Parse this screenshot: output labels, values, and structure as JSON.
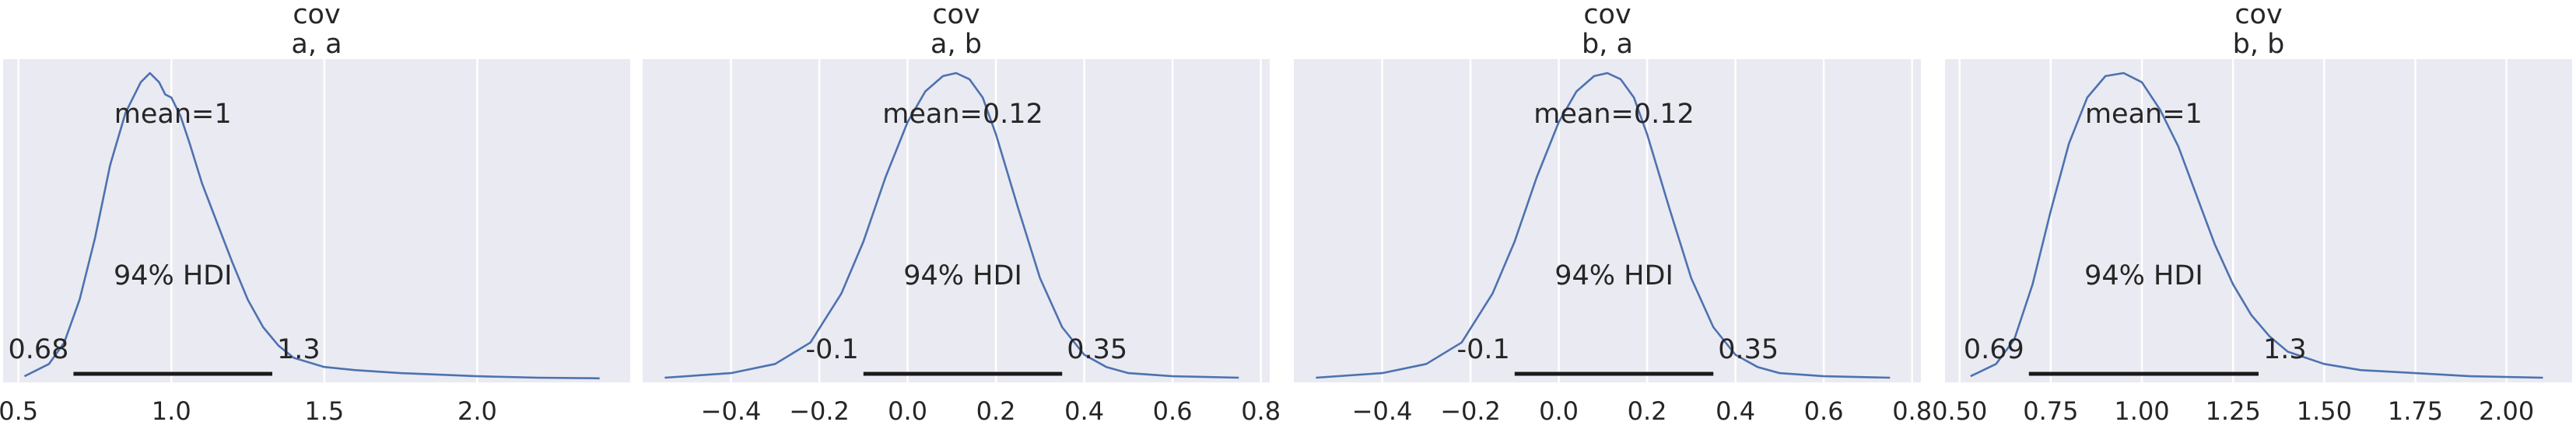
{
  "chart_data": [
    {
      "type": "line",
      "title": "cov\na, a",
      "title_lines": [
        "cov",
        "a, a"
      ],
      "xlim": [
        0.45,
        2.5
      ],
      "xticks": [
        0.5,
        1.0,
        1.5,
        2.0
      ],
      "xtick_labels": [
        "0.5",
        "1.0",
        "1.5",
        "2.0"
      ],
      "mean_label": "mean=1",
      "hdi_label": "94% HDI",
      "hdi": [
        0.68,
        1.33
      ],
      "hdi_labels": [
        "0.68",
        "1.3"
      ],
      "density": {
        "x": [
          0.52,
          0.6,
          0.65,
          0.7,
          0.75,
          0.8,
          0.85,
          0.9,
          0.93,
          0.96,
          0.98,
          1.0,
          1.03,
          1.06,
          1.1,
          1.15,
          1.2,
          1.25,
          1.3,
          1.35,
          1.4,
          1.5,
          1.6,
          1.75,
          2.0,
          2.2,
          2.4
        ],
        "y": [
          0.01,
          0.05,
          0.12,
          0.26,
          0.46,
          0.7,
          0.87,
          0.97,
          1.0,
          0.97,
          0.93,
          0.92,
          0.86,
          0.77,
          0.64,
          0.51,
          0.38,
          0.26,
          0.17,
          0.11,
          0.07,
          0.04,
          0.03,
          0.02,
          0.01,
          0.005,
          0.003
        ]
      }
    },
    {
      "type": "line",
      "title": "cov\na, b",
      "title_lines": [
        "cov",
        "a, b"
      ],
      "xlim": [
        -0.6,
        0.82
      ],
      "xticks": [
        -0.4,
        -0.2,
        0.0,
        0.2,
        0.4,
        0.6,
        0.8
      ],
      "xtick_labels": [
        "−0.4",
        "−0.2",
        "0.0",
        "0.2",
        "0.4",
        "0.6",
        "0.8"
      ],
      "mean_label": "mean=0.12",
      "hdi_label": "94% HDI",
      "hdi": [
        -0.1,
        0.35
      ],
      "hdi_labels": [
        "-0.1",
        "0.35"
      ],
      "density": {
        "x": [
          -0.55,
          -0.4,
          -0.3,
          -0.22,
          -0.15,
          -0.1,
          -0.05,
          0.0,
          0.04,
          0.08,
          0.11,
          0.14,
          0.17,
          0.2,
          0.25,
          0.3,
          0.35,
          0.4,
          0.45,
          0.5,
          0.6,
          0.75
        ],
        "y": [
          0.005,
          0.02,
          0.05,
          0.12,
          0.28,
          0.45,
          0.66,
          0.84,
          0.94,
          0.99,
          1.0,
          0.98,
          0.92,
          0.8,
          0.56,
          0.33,
          0.17,
          0.08,
          0.04,
          0.02,
          0.01,
          0.005
        ]
      }
    },
    {
      "type": "line",
      "title": "cov\nb, a",
      "title_lines": [
        "cov",
        "b, a"
      ],
      "xlim": [
        -0.6,
        0.82
      ],
      "xticks": [
        -0.4,
        -0.2,
        0.0,
        0.2,
        0.4,
        0.6,
        0.8
      ],
      "xtick_labels": [
        "−0.4",
        "−0.2",
        "0.0",
        "0.2",
        "0.4",
        "0.6",
        "0.8"
      ],
      "mean_label": "mean=0.12",
      "hdi_label": "94% HDI",
      "hdi": [
        -0.1,
        0.35
      ],
      "hdi_labels": [
        "-0.1",
        "0.35"
      ],
      "density": {
        "x": [
          -0.55,
          -0.4,
          -0.3,
          -0.22,
          -0.15,
          -0.1,
          -0.05,
          0.0,
          0.04,
          0.08,
          0.11,
          0.14,
          0.17,
          0.2,
          0.25,
          0.3,
          0.35,
          0.4,
          0.45,
          0.5,
          0.6,
          0.75
        ],
        "y": [
          0.005,
          0.02,
          0.05,
          0.12,
          0.28,
          0.45,
          0.66,
          0.84,
          0.94,
          0.99,
          1.0,
          0.98,
          0.92,
          0.8,
          0.56,
          0.33,
          0.17,
          0.08,
          0.04,
          0.02,
          0.01,
          0.005
        ]
      }
    },
    {
      "type": "line",
      "title": "cov\nb, b",
      "title_lines": [
        "cov",
        "b, b"
      ],
      "xlim": [
        0.46,
        2.18
      ],
      "xticks": [
        0.5,
        0.75,
        1.0,
        1.25,
        1.5,
        1.75,
        2.0
      ],
      "xtick_labels": [
        "0.50",
        "0.75",
        "1.00",
        "1.25",
        "1.50",
        "1.75",
        "2.00"
      ],
      "mean_label": "mean=1",
      "hdi_label": "94% HDI",
      "hdi": [
        0.69,
        1.32
      ],
      "hdi_labels": [
        "0.69",
        "1.3"
      ],
      "density": {
        "x": [
          0.53,
          0.6,
          0.65,
          0.7,
          0.75,
          0.8,
          0.85,
          0.9,
          0.95,
          1.0,
          1.05,
          1.1,
          1.15,
          1.2,
          1.25,
          1.3,
          1.35,
          1.4,
          1.5,
          1.6,
          1.75,
          1.9,
          2.1
        ],
        "y": [
          0.01,
          0.05,
          0.13,
          0.31,
          0.55,
          0.77,
          0.92,
          0.99,
          1.0,
          0.97,
          0.88,
          0.76,
          0.6,
          0.44,
          0.31,
          0.21,
          0.14,
          0.09,
          0.05,
          0.03,
          0.02,
          0.01,
          0.005
        ]
      }
    }
  ]
}
